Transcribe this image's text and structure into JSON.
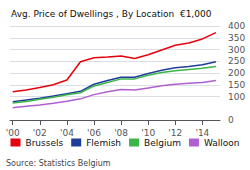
{
  "chart_data": {
    "type": "line",
    "title": "Avg. Price of Dwellings , By Location  €1,000",
    "annotations": [
      "Source: Statistics Belgium"
    ],
    "x": [
      2000,
      2001,
      2002,
      2003,
      2004,
      2005,
      2006,
      2007,
      2008,
      2009,
      2010,
      2011,
      2012,
      2013,
      2014,
      2015
    ],
    "series": [
      {
        "name": "Brussels",
        "color": "#e8000d",
        "values": [
          120,
          128,
          138,
          150,
          170,
          248,
          265,
          268,
          272,
          262,
          278,
          298,
          318,
          328,
          345,
          372
        ]
      },
      {
        "name": "Flemish",
        "color": "#1f3d99",
        "values": [
          78,
          85,
          93,
          102,
          112,
          122,
          152,
          168,
          182,
          182,
          198,
          212,
          222,
          228,
          235,
          248
        ]
      },
      {
        "name": "Belgium",
        "color": "#3cb54a",
        "values": [
          72,
          79,
          88,
          97,
          107,
          116,
          145,
          160,
          175,
          175,
          190,
          202,
          210,
          215,
          220,
          228
        ]
      },
      {
        "name": "Walloon",
        "color": "#b05fd0",
        "values": [
          52,
          58,
          64,
          71,
          80,
          90,
          108,
          120,
          130,
          128,
          136,
          146,
          152,
          156,
          160,
          168
        ]
      }
    ],
    "xlim": [
      1999.8,
      2015.3
    ],
    "xticks": [
      {
        "value": 2000,
        "label": "'00"
      },
      {
        "value": 2002,
        "label": "'02"
      },
      {
        "value": 2004,
        "label": "'04"
      },
      {
        "value": 2006,
        "label": "'06"
      },
      {
        "value": 2008,
        "label": "'08"
      },
      {
        "value": 2010,
        "label": "'10"
      },
      {
        "value": 2012,
        "label": "'12"
      },
      {
        "value": 2014,
        "label": "'14"
      }
    ],
    "ylim": [
      0,
      400
    ],
    "yticks": [
      0,
      100,
      150,
      200,
      250,
      300,
      350,
      400
    ],
    "grid": true,
    "legend": "bottom"
  }
}
